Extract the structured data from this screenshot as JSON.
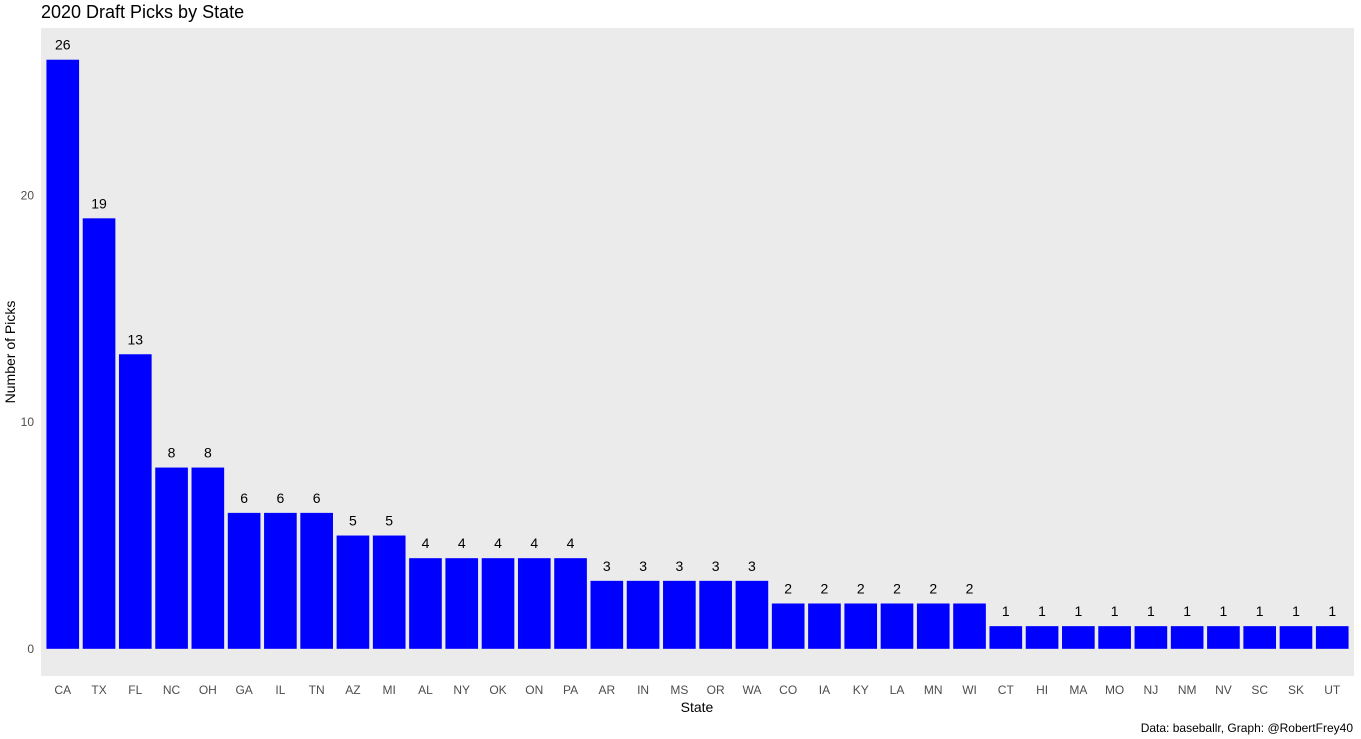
{
  "chart_data": {
    "type": "bar",
    "title": "2020 Draft Picks by State",
    "xlabel": "State",
    "ylabel": "Number of Picks",
    "caption": "Data: baseballr, Graph: @RobertFrey40",
    "categories": [
      "CA",
      "TX",
      "FL",
      "NC",
      "OH",
      "GA",
      "IL",
      "TN",
      "AZ",
      "MI",
      "AL",
      "NY",
      "OK",
      "ON",
      "PA",
      "AR",
      "IN",
      "MS",
      "OR",
      "WA",
      "CO",
      "IA",
      "KY",
      "LA",
      "MN",
      "WI",
      "CT",
      "HI",
      "MA",
      "MO",
      "NJ",
      "NM",
      "NV",
      "SC",
      "SK",
      "UT"
    ],
    "values": [
      26,
      19,
      13,
      8,
      8,
      6,
      6,
      6,
      5,
      5,
      4,
      4,
      4,
      4,
      4,
      3,
      3,
      3,
      3,
      3,
      2,
      2,
      2,
      2,
      2,
      2,
      1,
      1,
      1,
      1,
      1,
      1,
      1,
      1,
      1,
      1
    ],
    "yticks": [
      0,
      10,
      20
    ],
    "ylim": [
      -1.2,
      27.4
    ],
    "bar_color": "#0000ff",
    "panel_background": "#ebebeb",
    "grid": false,
    "legend": "none"
  }
}
